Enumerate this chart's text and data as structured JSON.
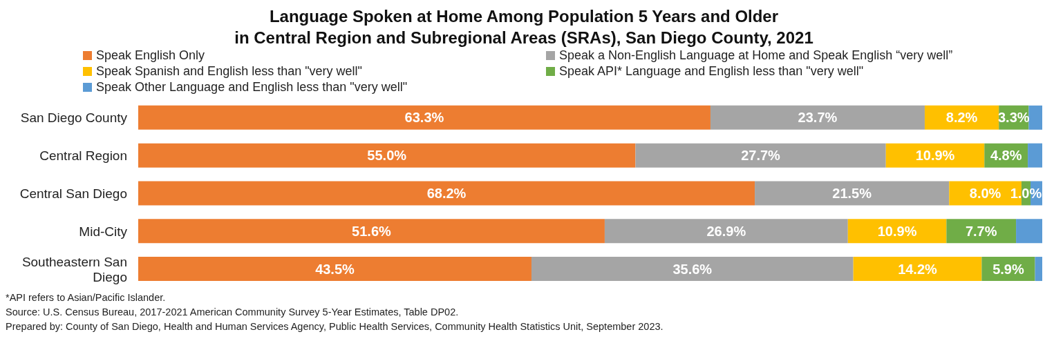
{
  "chart_data": {
    "type": "bar",
    "orientation": "horizontal",
    "stacked": true,
    "title": "Language Spoken at Home Among Population 5 Years and Older\nin Central Region and Subregional Areas (SRAs), San Diego County, 2021",
    "categories": [
      "San Diego County",
      "Central Region",
      "Central San Diego",
      "Mid-City",
      "Southeastern San Diego"
    ],
    "series": [
      {
        "name": "Speak English Only",
        "color": "#ed7d31",
        "values": [
          63.3,
          55.0,
          68.2,
          51.6,
          43.5
        ],
        "value_labels": [
          "63.3%",
          "55.0%",
          "68.2%",
          "51.6%",
          "43.5%"
        ]
      },
      {
        "name": "Speak a Non-English Language at Home and Speak English “very well”",
        "color": "#a5a5a5",
        "values": [
          23.7,
          27.7,
          21.5,
          26.9,
          35.6
        ],
        "value_labels": [
          "23.7%",
          "27.7%",
          "21.5%",
          "26.9%",
          "35.6%"
        ]
      },
      {
        "name": "Speak Spanish and English less than \"very well\"",
        "color": "#ffc000",
        "values": [
          8.2,
          10.9,
          8.0,
          10.9,
          14.2
        ],
        "value_labels": [
          "8.2%",
          "10.9%",
          "8.0%",
          "10.9%",
          "14.2%"
        ]
      },
      {
        "name": "Speak API* Language and English less than \"very well\"",
        "color": "#70ad47",
        "values": [
          3.3,
          4.8,
          1.0,
          7.7,
          5.9
        ],
        "value_labels": [
          "3.3%",
          "4.8%",
          "1.0%",
          "7.7%",
          "5.9%"
        ]
      },
      {
        "name": "Speak Other Language and English less than \"very well\"",
        "color": "#5b9bd5",
        "values": [
          1.5,
          1.6,
          1.3,
          2.9,
          0.8
        ],
        "value_labels": [
          null,
          null,
          null,
          null,
          null
        ]
      }
    ],
    "xlim": [
      0,
      100
    ],
    "tick_labels": "y",
    "legend": "top",
    "grid": false,
    "annotations": [
      "*API refers to Asian/Pacific Islander.",
      "Source: U.S. Census Bureau, 2017-2021 American Community Survey 5-Year Estimates, Table DP02.",
      "Prepared by: County of San Diego, Health and Human Services Agency, Public Health Services, Community Health Statistics Unit, September 2023."
    ]
  }
}
